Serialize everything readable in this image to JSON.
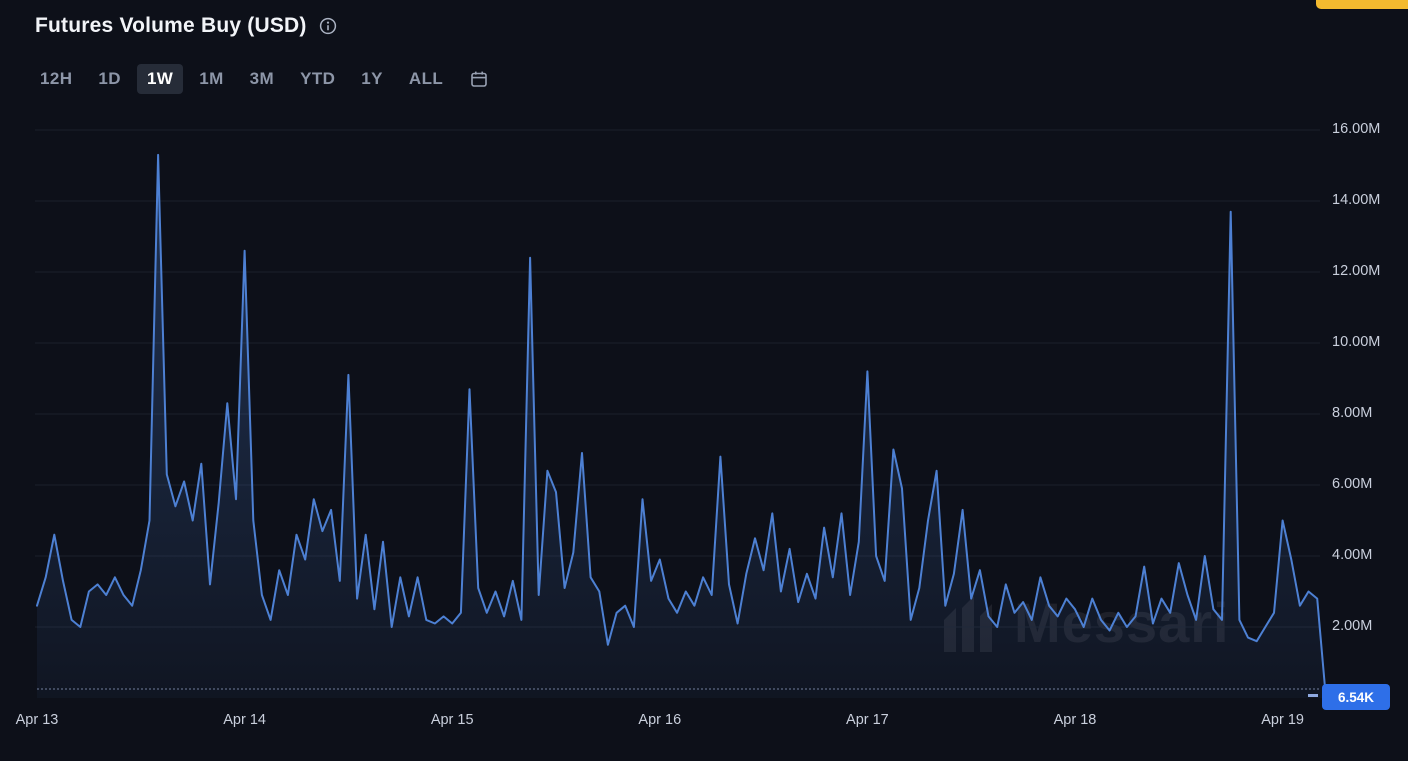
{
  "header": {
    "title": "Futures Volume Buy (USD)"
  },
  "tabs": {
    "items": [
      {
        "label": "12H",
        "active": false
      },
      {
        "label": "1D",
        "active": false
      },
      {
        "label": "1W",
        "active": true
      },
      {
        "label": "1M",
        "active": false
      },
      {
        "label": "3M",
        "active": false
      },
      {
        "label": "YTD",
        "active": false
      },
      {
        "label": "1Y",
        "active": false
      },
      {
        "label": "ALL",
        "active": false
      }
    ]
  },
  "icons": {
    "info": "circled-i",
    "calendar": "calendar-outline",
    "messari_logo": "three-slanted-bars"
  },
  "watermark": {
    "text": "Messari"
  },
  "colors": {
    "background": "#0d1019",
    "line": "#4d80d3",
    "gridline": "#1b202b",
    "badge": "#2e6fe8",
    "accent_yellow": "#f3ba2f",
    "tab_active_bg": "#262c38",
    "tab_text": "#8d96a8",
    "axis_text": "#c9cfdc"
  },
  "chart_data": {
    "type": "area",
    "title": "Futures Volume Buy (USD)",
    "unit": "USD",
    "legend": [],
    "grid": "horizontal",
    "y_axis_side": "right",
    "ylim": [
      0,
      16.5
    ],
    "y_tick_values": [
      2,
      4,
      6,
      8,
      10,
      12,
      14,
      16
    ],
    "y_tick_labels": [
      "2.00M",
      "4.00M",
      "6.00M",
      "8.00M",
      "10.00M",
      "12.00M",
      "14.00M",
      "16.00M"
    ],
    "x_labels": [
      "Apr 13",
      "Apr 14",
      "Apr 15",
      "Apr 16",
      "Apr 17",
      "Apr 18",
      "Apr 19"
    ],
    "points_per_day": 24,
    "values_unit": "millions_usd",
    "values_millions": [
      2.6,
      3.4,
      4.6,
      3.3,
      2.2,
      2.0,
      3.0,
      3.2,
      2.9,
      3.4,
      2.9,
      2.6,
      3.6,
      5.0,
      15.3,
      6.3,
      5.4,
      6.1,
      5.0,
      6.6,
      3.2,
      5.5,
      8.3,
      5.6,
      12.6,
      5.0,
      2.9,
      2.2,
      3.6,
      2.9,
      4.6,
      3.9,
      5.6,
      4.7,
      5.3,
      3.3,
      9.1,
      2.8,
      4.6,
      2.5,
      4.4,
      2.0,
      3.4,
      2.3,
      3.4,
      2.2,
      2.1,
      2.3,
      2.1,
      2.4,
      8.7,
      3.1,
      2.4,
      3.0,
      2.3,
      3.3,
      2.2,
      12.4,
      2.9,
      6.4,
      5.8,
      3.1,
      4.1,
      6.9,
      3.4,
      3.0,
      1.5,
      2.4,
      2.6,
      2.0,
      5.6,
      3.3,
      3.9,
      2.8,
      2.4,
      3.0,
      2.6,
      3.4,
      2.9,
      6.8,
      3.2,
      2.1,
      3.5,
      4.5,
      3.6,
      5.2,
      3.0,
      4.2,
      2.7,
      3.5,
      2.8,
      4.8,
      3.4,
      5.2,
      2.9,
      4.4,
      9.2,
      4.0,
      3.3,
      7.0,
      5.9,
      2.2,
      3.1,
      5.0,
      6.4,
      2.6,
      3.5,
      5.3,
      2.8,
      3.6,
      2.3,
      2.0,
      3.2,
      2.4,
      2.7,
      2.2,
      3.4,
      2.6,
      2.3,
      2.8,
      2.5,
      2.0,
      2.8,
      2.2,
      1.9,
      2.4,
      2.0,
      2.3,
      3.7,
      2.1,
      2.8,
      2.4,
      3.8,
      2.9,
      2.2,
      4.0,
      2.5,
      2.2,
      13.7,
      2.2,
      1.7,
      1.6,
      2.0,
      2.4,
      5.0,
      3.9,
      2.6,
      3.0,
      2.8,
      0.00654
    ],
    "current_value_label": "6.54K"
  }
}
